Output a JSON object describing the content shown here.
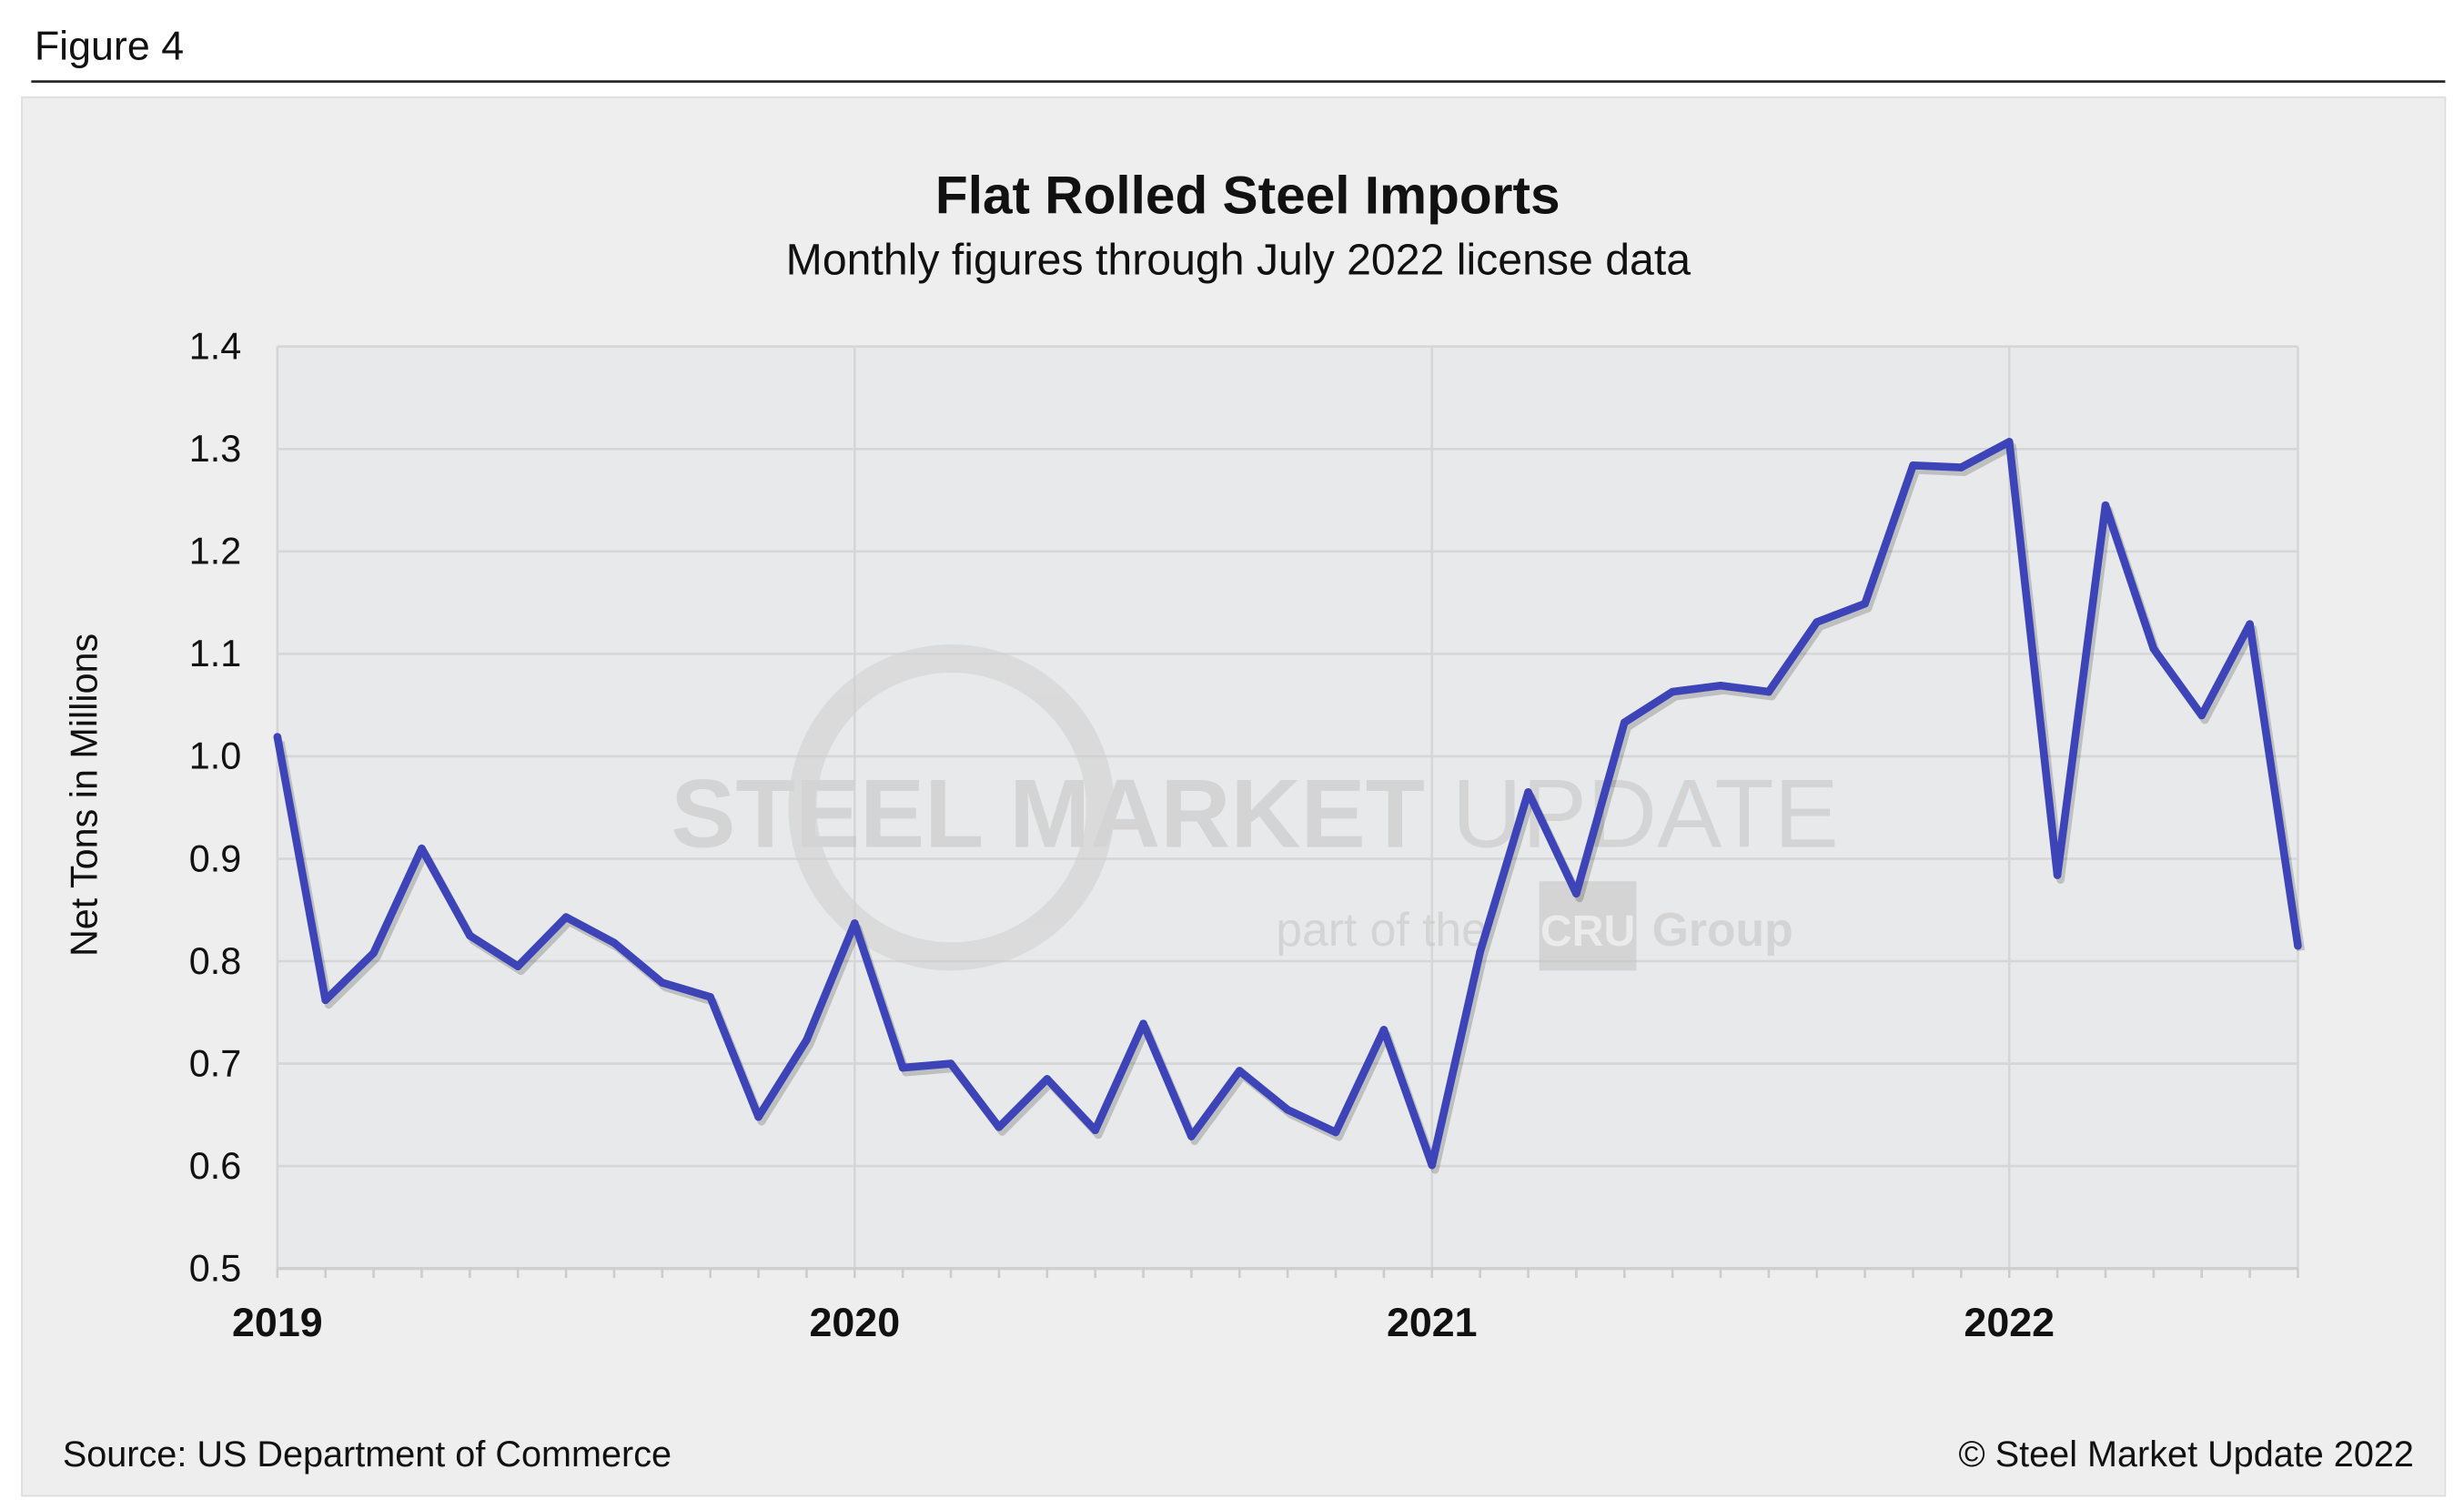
{
  "figure_label": "Figure 4",
  "source": "Source: US Department of Commerce",
  "copyright": "© Steel Market Update 2022",
  "watermark": {
    "line1_bold": "STEEL MARKET",
    "line1_light": "UPDATE",
    "line2a": "part of the",
    "badge": "CRU",
    "line2b": "Group"
  },
  "colors": {
    "line": "#3d44b8",
    "plot_bg": "#e8e9ea",
    "panel_bg": "#eeeeee",
    "grid": "#ffffff"
  },
  "chart_data": {
    "type": "line",
    "title": "Flat Rolled Steel Imports",
    "subtitle": "Monthly figures through July 2022 license data",
    "xlabel": "",
    "ylabel": "Net Tons in Millions",
    "ylim": [
      0.5,
      1.4
    ],
    "yticks": [
      "0.5",
      "0.6",
      "0.7",
      "0.8",
      "0.9",
      "1.0",
      "1.1",
      "1.2",
      "1.3",
      "1.4"
    ],
    "xticks": [
      "2019",
      "2020",
      "2021",
      "2022"
    ],
    "grid": true,
    "x": [
      "2019-01",
      "2019-02",
      "2019-03",
      "2019-04",
      "2019-05",
      "2019-06",
      "2019-07",
      "2019-08",
      "2019-09",
      "2019-10",
      "2019-11",
      "2019-12",
      "2020-01",
      "2020-02",
      "2020-03",
      "2020-04",
      "2020-05",
      "2020-06",
      "2020-07",
      "2020-08",
      "2020-09",
      "2020-10",
      "2020-11",
      "2020-12",
      "2021-01",
      "2021-02",
      "2021-03",
      "2021-04",
      "2021-05",
      "2021-06",
      "2021-07",
      "2021-08",
      "2021-09",
      "2021-10",
      "2021-11",
      "2021-12",
      "2022-01",
      "2022-02",
      "2022-03",
      "2022-04",
      "2022-05",
      "2022-06",
      "2022-07"
    ],
    "values": [
      1.019,
      0.762,
      0.808,
      0.91,
      0.825,
      0.795,
      0.843,
      0.818,
      0.779,
      0.765,
      0.648,
      0.723,
      0.837,
      0.696,
      0.7,
      0.638,
      0.685,
      0.635,
      0.739,
      0.629,
      0.693,
      0.655,
      0.633,
      0.733,
      0.601,
      0.809,
      0.965,
      0.866,
      1.033,
      1.063,
      1.069,
      1.063,
      1.131,
      1.149,
      1.284,
      1.282,
      1.307,
      0.884,
      1.245,
      1.105,
      1.04,
      1.129,
      0.815
    ]
  }
}
